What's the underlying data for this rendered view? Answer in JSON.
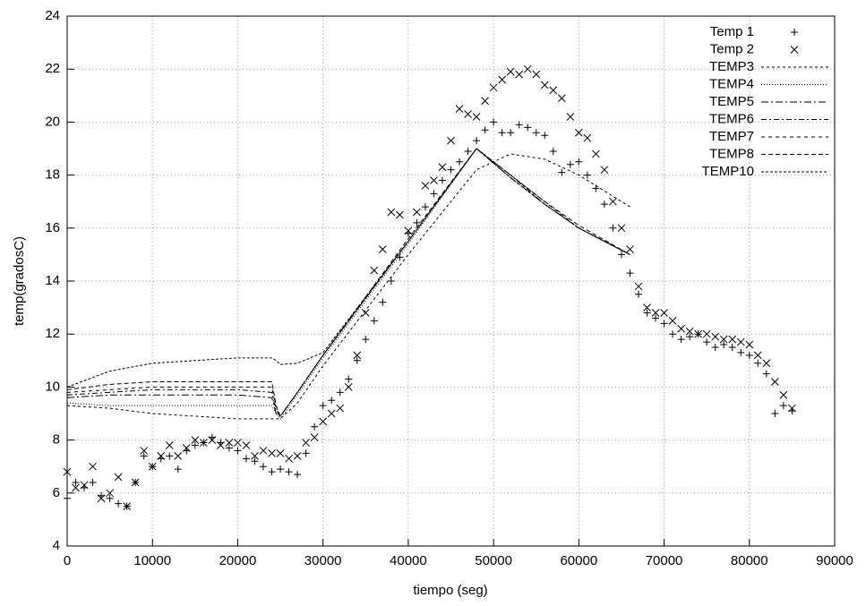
{
  "chart_data": {
    "type": "line",
    "xlabel": "tiempo (seg)",
    "ylabel": "temp(gradosC)",
    "xlim": [
      0,
      90000
    ],
    "ylim": [
      4,
      24
    ],
    "xticks": [
      0,
      10000,
      20000,
      30000,
      40000,
      50000,
      60000,
      70000,
      80000,
      90000
    ],
    "yticks": [
      4,
      6,
      8,
      10,
      12,
      14,
      16,
      18,
      20,
      22,
      24
    ],
    "grid": true,
    "legend": "top-right",
    "series": [
      {
        "name": "Temp 1",
        "color": "#000000",
        "marker": "plus",
        "x": [
          0,
          1000,
          2000,
          3000,
          4000,
          5000,
          6000,
          7000,
          8000,
          9000,
          10000,
          11000,
          12000,
          13000,
          14000,
          15000,
          16000,
          17000,
          18000,
          19000,
          20000,
          21000,
          22000,
          23000,
          24000,
          25000,
          26000,
          27000,
          28000,
          29000,
          30000,
          31000,
          32000,
          33000,
          34000,
          35000,
          36000,
          37000,
          38000,
          39000,
          40000,
          41000,
          42000,
          43000,
          44000,
          45000,
          46000,
          47000,
          48000,
          49000,
          50000,
          51000,
          52000,
          53000,
          54000,
          55000,
          56000,
          57000,
          58000,
          59000,
          60000,
          61000,
          62000,
          63000,
          64000,
          65000,
          66000,
          67000,
          68000,
          69000,
          70000,
          71000,
          72000,
          73000,
          74000,
          75000,
          76000,
          77000,
          78000,
          79000,
          80000,
          81000,
          82000,
          83000,
          84000,
          85000
        ],
        "values": [
          5.8,
          6.4,
          6.2,
          6.4,
          5.9,
          5.8,
          5.6,
          5.5,
          6.4,
          7.4,
          7.0,
          7.3,
          7.4,
          6.9,
          7.6,
          7.8,
          7.9,
          8.1,
          7.9,
          7.7,
          7.6,
          7.3,
          7.2,
          7.0,
          6.8,
          6.9,
          6.8,
          6.7,
          7.5,
          8.5,
          9.3,
          9.5,
          9.8,
          10.3,
          11.0,
          11.8,
          12.5,
          13.2,
          14.0,
          14.9,
          15.8,
          16.2,
          16.8,
          17.3,
          17.8,
          18.2,
          18.5,
          18.9,
          19.3,
          19.7,
          20.0,
          19.6,
          19.6,
          19.9,
          19.8,
          19.6,
          19.5,
          18.9,
          18.1,
          18.4,
          18.5,
          18.0,
          17.5,
          16.9,
          16.0,
          15.0,
          14.3,
          13.5,
          12.8,
          12.6,
          12.4,
          12.0,
          11.8,
          11.9,
          12.0,
          11.7,
          11.5,
          11.6,
          11.5,
          11.3,
          11.2,
          10.9,
          10.5,
          9.0,
          9.3,
          9.1
        ]
      },
      {
        "name": "Temp 2",
        "color": "#000000",
        "marker": "cross",
        "x": [
          0,
          1000,
          2000,
          3000,
          4000,
          5000,
          6000,
          7000,
          8000,
          9000,
          10000,
          11000,
          12000,
          13000,
          14000,
          15000,
          16000,
          17000,
          18000,
          19000,
          20000,
          21000,
          22000,
          23000,
          24000,
          25000,
          26000,
          27000,
          28000,
          29000,
          30000,
          31000,
          32000,
          33000,
          34000,
          35000,
          36000,
          37000,
          38000,
          39000,
          40000,
          41000,
          42000,
          43000,
          44000,
          45000,
          46000,
          47000,
          48000,
          49000,
          50000,
          51000,
          52000,
          53000,
          54000,
          55000,
          56000,
          57000,
          58000,
          59000,
          60000,
          61000,
          62000,
          63000,
          64000,
          65000,
          66000,
          67000,
          68000,
          69000,
          70000,
          71000,
          72000,
          73000,
          74000,
          75000,
          76000,
          77000,
          78000,
          79000,
          80000,
          81000,
          82000,
          83000,
          84000,
          85000
        ],
        "values": [
          6.8,
          6.2,
          6.3,
          7.0,
          5.8,
          6.0,
          6.6,
          5.5,
          6.4,
          7.6,
          7.0,
          7.4,
          7.8,
          7.4,
          7.7,
          8.0,
          7.9,
          8.0,
          7.8,
          7.9,
          7.9,
          7.8,
          7.4,
          7.6,
          7.5,
          7.5,
          7.3,
          7.4,
          7.9,
          8.1,
          8.7,
          9.0,
          9.2,
          10.0,
          11.2,
          12.8,
          14.4,
          15.2,
          16.6,
          16.5,
          15.9,
          16.6,
          17.6,
          17.8,
          18.3,
          19.3,
          20.5,
          20.3,
          20.2,
          20.8,
          21.3,
          21.6,
          21.9,
          21.8,
          22.0,
          21.8,
          21.4,
          21.2,
          20.9,
          20.2,
          19.6,
          19.4,
          18.8,
          18.2,
          17.0,
          16.0,
          15.2,
          13.8,
          13.0,
          12.8,
          12.8,
          12.5,
          12.2,
          12.1,
          12.0,
          12.0,
          11.9,
          11.8,
          11.8,
          11.7,
          11.6,
          11.2,
          10.9,
          10.2,
          9.7,
          9.2
        ]
      },
      {
        "name": "TEMP3",
        "color": "#000000",
        "dash": "3 3",
        "x": [
          0,
          5000,
          10000,
          15000,
          20000,
          24000,
          24500,
          25000,
          27000,
          30000,
          40000,
          48000,
          52000,
          56000,
          60000,
          66000
        ],
        "values": [
          9.3,
          9.2,
          9.0,
          8.9,
          8.8,
          8.8,
          8.8,
          8.8,
          9.4,
          10.8,
          15.0,
          18.2,
          18.8,
          18.6,
          18.0,
          16.8
        ]
      },
      {
        "name": "TEMP4",
        "color": "#000000",
        "dash": "1 2",
        "x": [
          0,
          5000,
          10000,
          15000,
          20000,
          24000,
          24500,
          25000,
          27000,
          30000,
          40000,
          48000,
          52000,
          56000,
          60000,
          66000
        ],
        "values": [
          9.4,
          9.3,
          9.3,
          9.3,
          9.3,
          9.3,
          9.0,
          8.8,
          9.7,
          11.1,
          15.4,
          19.0,
          17.9,
          16.9,
          16.0,
          15.0
        ]
      },
      {
        "name": "TEMP5",
        "color": "#000000",
        "dash": "8 3 2 3",
        "x": [
          0,
          5000,
          10000,
          15000,
          20000,
          24000,
          24500,
          25000,
          27000,
          30000,
          40000,
          48000,
          52000,
          56000,
          60000,
          66000
        ],
        "values": [
          9.6,
          9.7,
          9.7,
          9.7,
          9.7,
          9.6,
          9.0,
          8.9,
          9.8,
          11.2,
          15.5,
          19.0,
          17.9,
          16.9,
          16.0,
          15.0
        ]
      },
      {
        "name": "TEMP6",
        "color": "#000000",
        "dash": "6 3 2 3",
        "x": [
          0,
          5000,
          10000,
          15000,
          20000,
          24000,
          24500,
          25000,
          27000,
          30000,
          40000,
          48000,
          52000,
          56000,
          60000,
          66000
        ],
        "values": [
          9.7,
          9.8,
          9.9,
          9.9,
          9.9,
          9.8,
          9.1,
          8.9,
          9.8,
          11.2,
          15.5,
          19.0,
          18.0,
          16.9,
          16.0,
          15.0
        ]
      },
      {
        "name": "TEMP7",
        "color": "#000000",
        "dash": "4 4",
        "x": [
          0,
          5000,
          10000,
          15000,
          20000,
          24000,
          24500,
          25000,
          27000,
          30000,
          40000,
          48000,
          52000,
          56000,
          60000,
          66000
        ],
        "values": [
          9.8,
          9.9,
          10.0,
          10.0,
          10.0,
          10.0,
          9.2,
          8.9,
          9.8,
          11.2,
          15.5,
          19.0,
          18.0,
          17.0,
          16.0,
          15.0
        ]
      },
      {
        "name": "TEMP8",
        "color": "#000000",
        "dash": "5 3",
        "x": [
          0,
          5000,
          10000,
          15000,
          20000,
          24000,
          24500,
          25000,
          27000,
          30000,
          40000,
          48000,
          52000,
          56000,
          60000,
          66000
        ],
        "values": [
          9.9,
          10.1,
          10.2,
          10.2,
          10.2,
          10.2,
          9.3,
          8.9,
          9.8,
          11.2,
          15.6,
          19.0,
          18.0,
          17.0,
          16.1,
          15.0
        ]
      },
      {
        "name": "TEMP10",
        "color": "#000000",
        "dash": "3 2",
        "x": [
          0,
          5000,
          10000,
          15000,
          20000,
          24000,
          24500,
          25000,
          27000,
          30000,
          40000,
          48000,
          52000,
          56000,
          60000,
          66000
        ],
        "values": [
          10.0,
          10.6,
          10.9,
          11.0,
          11.1,
          11.1,
          11.0,
          10.85,
          10.9,
          11.3,
          15.5,
          19.0,
          17.9,
          16.9,
          16.0,
          15.0
        ]
      }
    ]
  }
}
